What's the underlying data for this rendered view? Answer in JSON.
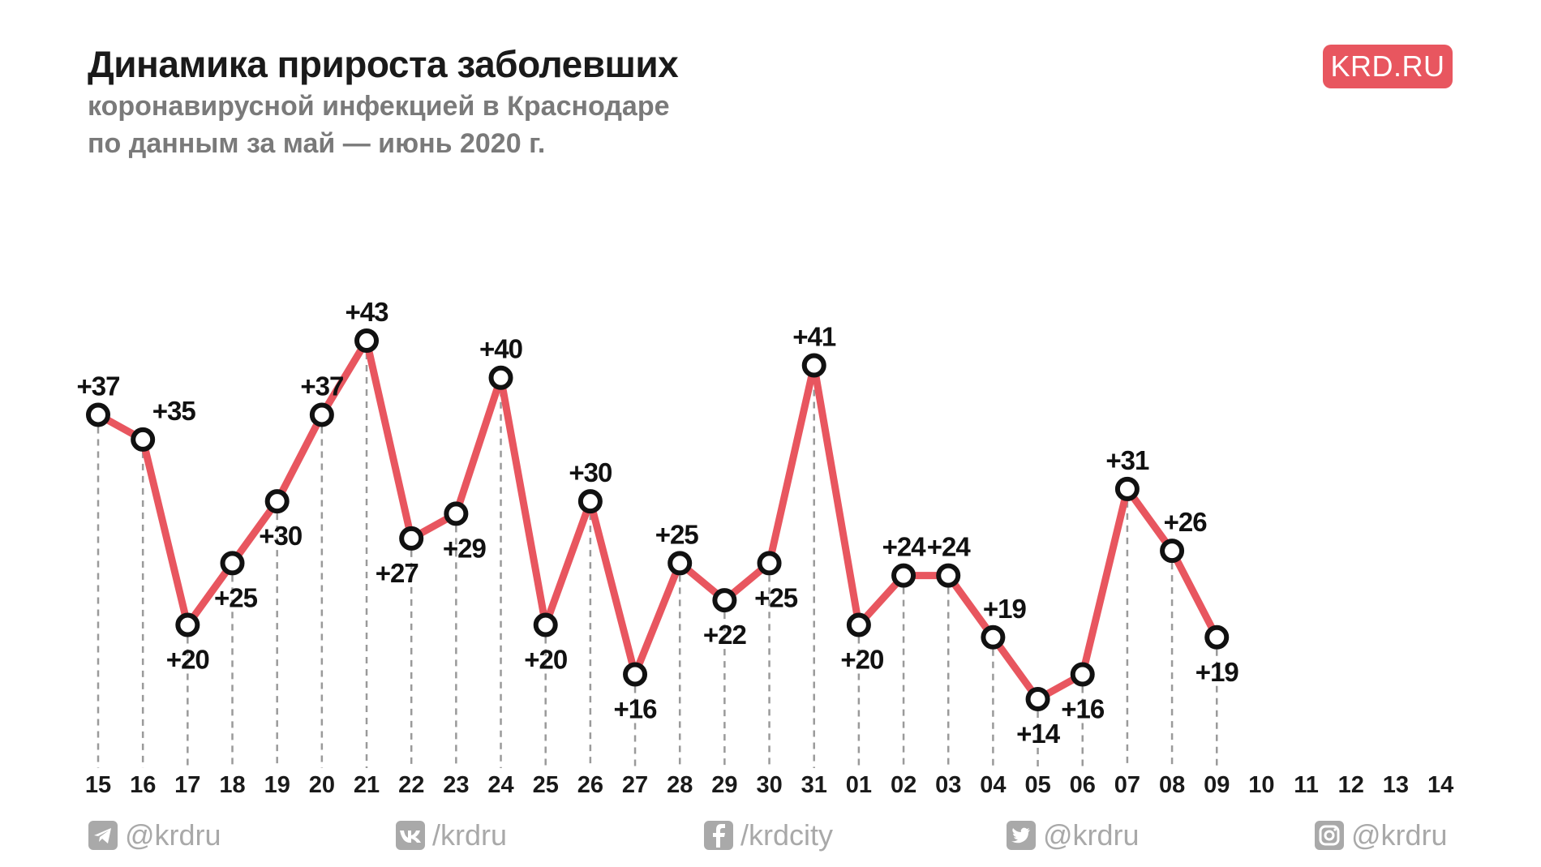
{
  "header": {
    "title": "Динамика прироста заболевших",
    "subtitle_line1": "коронавирусной инфекцией в Краснодаре",
    "subtitle_line2": "по данным за май — июнь 2020 г."
  },
  "brand": {
    "label": "KRD.RU"
  },
  "colors": {
    "line": "#e8565f",
    "marker_fill": "#ffffff",
    "marker_stroke": "#111111",
    "guide": "#9a9a9a",
    "tick_text": "#1a1a1a",
    "social_text": "#a9a9a9",
    "brand_bg": "#e8565f"
  },
  "chart_data": {
    "type": "line",
    "title": "Динамика прироста заболевших коронавирусной инфекцией в Краснодаре",
    "xlabel": "",
    "ylabel": "",
    "categories": [
      "15",
      "16",
      "17",
      "18",
      "19",
      "20",
      "21",
      "22",
      "23",
      "24",
      "25",
      "26",
      "27",
      "28",
      "29",
      "30",
      "31",
      "01",
      "02",
      "03",
      "04",
      "05",
      "06",
      "07",
      "08",
      "09",
      "10",
      "11",
      "12",
      "13",
      "14"
    ],
    "values": [
      37,
      35,
      20,
      25,
      30,
      37,
      43,
      27,
      29,
      40,
      20,
      30,
      16,
      25,
      22,
      25,
      41,
      20,
      24,
      24,
      19,
      14,
      16,
      31,
      26,
      19,
      null,
      null,
      null,
      null,
      null
    ],
    "labels": [
      "+37",
      "+35",
      "+20",
      "+25",
      "+30",
      "+37",
      "+43",
      "+27",
      "+29",
      "+40",
      "+20",
      "+30",
      "+16",
      "+25",
      "+22",
      "+25",
      "+41",
      "+20",
      "+24",
      "+24",
      "+19",
      "+14",
      "+16",
      "+31",
      "+26",
      "+19"
    ],
    "label_positions": [
      "above",
      "above",
      "below",
      "below",
      "below",
      "above",
      "above",
      "below",
      "below",
      "above",
      "below",
      "above",
      "below",
      "above",
      "below",
      "below",
      "above",
      "below",
      "above",
      "above",
      "above",
      "below",
      "below",
      "above",
      "above",
      "below"
    ],
    "ylim": [
      0,
      45
    ],
    "grid": false,
    "legend": "none"
  },
  "footer": {
    "items": [
      {
        "icon": "telegram-icon",
        "handle": "@krdru"
      },
      {
        "icon": "vk-icon",
        "handle": "/krdru"
      },
      {
        "icon": "facebook-icon",
        "handle": "/krdcity"
      },
      {
        "icon": "twitter-icon",
        "handle": "@krdru"
      },
      {
        "icon": "instagram-icon",
        "handle": "@krdru"
      }
    ]
  }
}
